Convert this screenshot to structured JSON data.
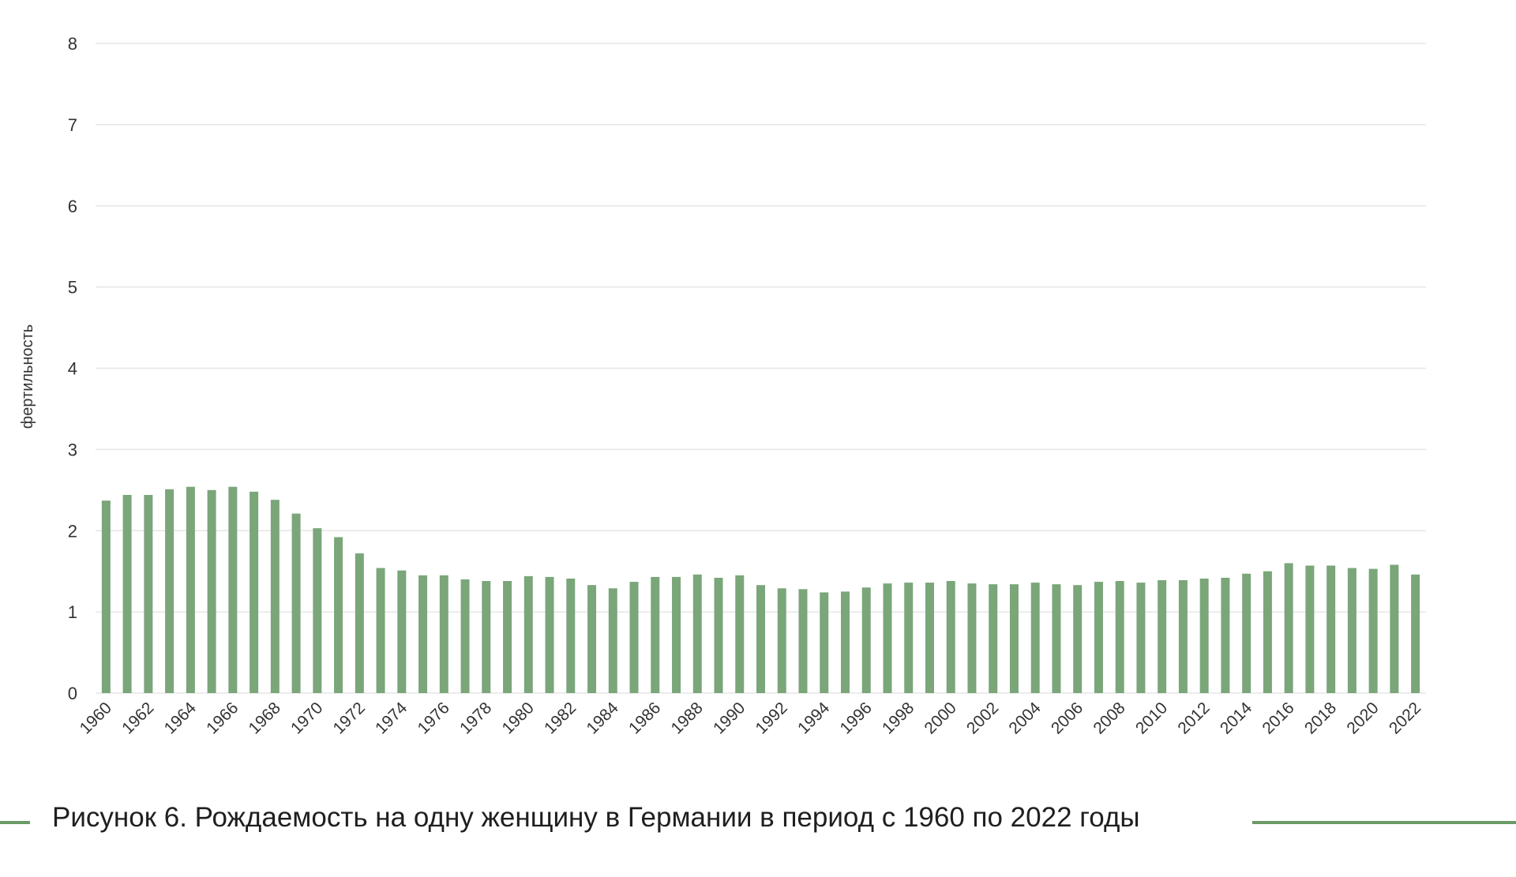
{
  "caption": "Рисунок 6. Рождаемость на одну женщину в Германии в период с 1960 по 2022 годы",
  "colors": {
    "bar": "#7aa67a",
    "grid": "#e6e6e6",
    "accent_line": "#6a9a66"
  },
  "chart_data": {
    "type": "bar",
    "title": "",
    "xlabel": "",
    "ylabel": "фертильность",
    "ylim": [
      0,
      8
    ],
    "yticks": [
      0,
      1,
      2,
      3,
      4,
      5,
      6,
      7,
      8
    ],
    "grid": true,
    "legend": "none",
    "categories": [
      "1960",
      "1961",
      "1962",
      "1963",
      "1964",
      "1965",
      "1966",
      "1967",
      "1968",
      "1969",
      "1970",
      "1971",
      "1972",
      "1973",
      "1974",
      "1975",
      "1976",
      "1977",
      "1978",
      "1979",
      "1980",
      "1981",
      "1982",
      "1983",
      "1984",
      "1985",
      "1986",
      "1987",
      "1988",
      "1989",
      "1990",
      "1991",
      "1992",
      "1993",
      "1994",
      "1995",
      "1996",
      "1997",
      "1998",
      "1999",
      "2000",
      "2001",
      "2002",
      "2003",
      "2004",
      "2005",
      "2006",
      "2007",
      "2008",
      "2009",
      "2010",
      "2011",
      "2012",
      "2013",
      "2014",
      "2015",
      "2016",
      "2017",
      "2018",
      "2019",
      "2020",
      "2021",
      "2022"
    ],
    "xtick_labels": [
      "1960",
      "1962",
      "1964",
      "1966",
      "1968",
      "1970",
      "1972",
      "1974",
      "1976",
      "1978",
      "1980",
      "1982",
      "1984",
      "1986",
      "1988",
      "1990",
      "1992",
      "1994",
      "1996",
      "1998",
      "2000",
      "2002",
      "2004",
      "2006",
      "2008",
      "2010",
      "2012",
      "2014",
      "2016",
      "2018",
      "2020",
      "2022"
    ],
    "values": [
      2.37,
      2.44,
      2.44,
      2.51,
      2.54,
      2.5,
      2.54,
      2.48,
      2.38,
      2.21,
      2.03,
      1.92,
      1.72,
      1.54,
      1.51,
      1.45,
      1.45,
      1.4,
      1.38,
      1.38,
      1.44,
      1.43,
      1.41,
      1.33,
      1.29,
      1.37,
      1.43,
      1.43,
      1.46,
      1.42,
      1.45,
      1.33,
      1.29,
      1.28,
      1.24,
      1.25,
      1.3,
      1.35,
      1.36,
      1.36,
      1.38,
      1.35,
      1.34,
      1.34,
      1.36,
      1.34,
      1.33,
      1.37,
      1.38,
      1.36,
      1.39,
      1.39,
      1.41,
      1.42,
      1.47,
      1.5,
      1.6,
      1.57,
      1.57,
      1.54,
      1.53,
      1.58,
      1.46
    ]
  }
}
